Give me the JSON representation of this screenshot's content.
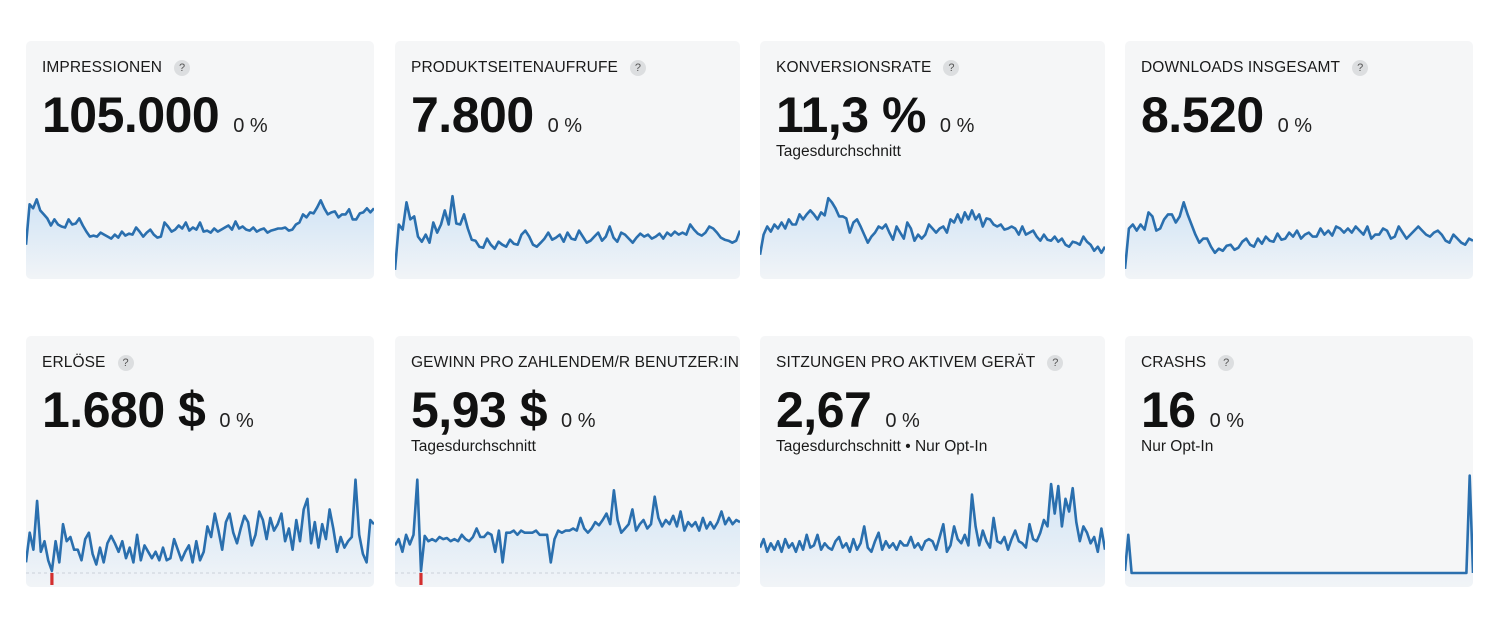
{
  "cards": [
    {
      "title": "IMPRESSIONEN",
      "value": "105.000",
      "delta": "0 %",
      "subtitle": "",
      "help": "?",
      "series": [
        0.3,
        0.7,
        0.66,
        0.75,
        0.64,
        0.6,
        0.56,
        0.49,
        0.55,
        0.5,
        0.48,
        0.47,
        0.55,
        0.5,
        0.51,
        0.56,
        0.49,
        0.43,
        0.38,
        0.39,
        0.38,
        0.42,
        0.4,
        0.38,
        0.36,
        0.4,
        0.37,
        0.43,
        0.39,
        0.41,
        0.4,
        0.47,
        0.43,
        0.38,
        0.42,
        0.45,
        0.4,
        0.37,
        0.38,
        0.52,
        0.48,
        0.43,
        0.45,
        0.49,
        0.46,
        0.52,
        0.44,
        0.47,
        0.45,
        0.52,
        0.43,
        0.44,
        0.42,
        0.46,
        0.43,
        0.45,
        0.47,
        0.49,
        0.45,
        0.53,
        0.46,
        0.48,
        0.45,
        0.44,
        0.47,
        0.43,
        0.45,
        0.46,
        0.42,
        0.44,
        0.45,
        0.46,
        0.46,
        0.47,
        0.44,
        0.45,
        0.5,
        0.52,
        0.6,
        0.57,
        0.62,
        0.61,
        0.67,
        0.74,
        0.66,
        0.6,
        0.62,
        0.63,
        0.57,
        0.6,
        0.6,
        0.65,
        0.55,
        0.55,
        0.61,
        0.62,
        0.66,
        0.62,
        0.66
      ],
      "dips": [],
      "baseline": false
    },
    {
      "title": "PRODUKTSEITENAUFRUFE",
      "value": "7.800",
      "delta": "0 %",
      "subtitle": "",
      "help": "?",
      "series": [
        0.05,
        0.5,
        0.45,
        0.72,
        0.55,
        0.58,
        0.38,
        0.33,
        0.4,
        0.32,
        0.52,
        0.42,
        0.5,
        0.64,
        0.5,
        0.78,
        0.51,
        0.5,
        0.6,
        0.46,
        0.35,
        0.34,
        0.28,
        0.27,
        0.36,
        0.3,
        0.26,
        0.33,
        0.3,
        0.28,
        0.35,
        0.31,
        0.3,
        0.4,
        0.44,
        0.38,
        0.3,
        0.28,
        0.32,
        0.36,
        0.42,
        0.35,
        0.37,
        0.4,
        0.33,
        0.42,
        0.36,
        0.35,
        0.44,
        0.38,
        0.32,
        0.34,
        0.38,
        0.42,
        0.34,
        0.38,
        0.48,
        0.37,
        0.33,
        0.42,
        0.4,
        0.36,
        0.32,
        0.37,
        0.41,
        0.38,
        0.4,
        0.36,
        0.38,
        0.41,
        0.36,
        0.42,
        0.39,
        0.43,
        0.4,
        0.42,
        0.4,
        0.5,
        0.45,
        0.41,
        0.39,
        0.42,
        0.48,
        0.46,
        0.42,
        0.37,
        0.35,
        0.34,
        0.32,
        0.34,
        0.44
      ],
      "dips": [],
      "baseline": false
    },
    {
      "title": "KONVERSIONSRATE",
      "value": "11,3 %",
      "delta": "0 %",
      "subtitle": "Tagesdurchschnitt",
      "help": "?",
      "series": [
        0.2,
        0.4,
        0.48,
        0.43,
        0.5,
        0.46,
        0.52,
        0.46,
        0.55,
        0.5,
        0.5,
        0.6,
        0.55,
        0.6,
        0.64,
        0.6,
        0.55,
        0.62,
        0.59,
        0.76,
        0.72,
        0.66,
        0.58,
        0.58,
        0.56,
        0.42,
        0.52,
        0.55,
        0.48,
        0.4,
        0.32,
        0.38,
        0.42,
        0.48,
        0.46,
        0.5,
        0.42,
        0.35,
        0.48,
        0.42,
        0.36,
        0.52,
        0.46,
        0.34,
        0.4,
        0.36,
        0.4,
        0.5,
        0.46,
        0.42,
        0.46,
        0.48,
        0.42,
        0.55,
        0.52,
        0.6,
        0.52,
        0.62,
        0.55,
        0.64,
        0.55,
        0.6,
        0.48,
        0.56,
        0.55,
        0.5,
        0.48,
        0.5,
        0.45,
        0.46,
        0.48,
        0.46,
        0.4,
        0.48,
        0.4,
        0.42,
        0.44,
        0.38,
        0.34,
        0.4,
        0.35,
        0.34,
        0.38,
        0.33,
        0.36,
        0.3,
        0.28,
        0.33,
        0.32,
        0.3,
        0.38,
        0.33,
        0.3,
        0.24,
        0.28,
        0.22,
        0.28
      ],
      "dips": [],
      "baseline": false
    },
    {
      "title": "DOWNLOADS INSGESAMT",
      "value": "8.520",
      "delta": "0 %",
      "subtitle": "",
      "help": "?",
      "series": [
        0.06,
        0.46,
        0.5,
        0.44,
        0.5,
        0.45,
        0.62,
        0.58,
        0.44,
        0.46,
        0.55,
        0.6,
        0.6,
        0.52,
        0.58,
        0.72,
        0.6,
        0.5,
        0.4,
        0.32,
        0.36,
        0.36,
        0.28,
        0.22,
        0.26,
        0.24,
        0.29,
        0.3,
        0.25,
        0.27,
        0.33,
        0.36,
        0.3,
        0.28,
        0.36,
        0.31,
        0.38,
        0.34,
        0.33,
        0.41,
        0.35,
        0.36,
        0.42,
        0.38,
        0.44,
        0.36,
        0.4,
        0.42,
        0.38,
        0.38,
        0.46,
        0.4,
        0.44,
        0.39,
        0.48,
        0.46,
        0.42,
        0.46,
        0.42,
        0.48,
        0.44,
        0.4,
        0.48,
        0.36,
        0.4,
        0.4,
        0.46,
        0.44,
        0.36,
        0.38,
        0.48,
        0.42,
        0.36,
        0.4,
        0.44,
        0.48,
        0.44,
        0.4,
        0.38,
        0.42,
        0.44,
        0.4,
        0.34,
        0.32,
        0.4,
        0.36,
        0.32,
        0.3,
        0.36,
        0.34
      ],
      "dips": [],
      "baseline": false
    },
    {
      "title": "ERLÖSE",
      "value": "1.680 $",
      "delta": "0 %",
      "subtitle": "",
      "help": "?",
      "series": [
        0.1,
        0.38,
        0.22,
        0.68,
        0.2,
        0.3,
        0.12,
        0.02,
        0.3,
        0.1,
        0.46,
        0.3,
        0.34,
        0.22,
        0.22,
        0.12,
        0.32,
        0.38,
        0.18,
        0.08,
        0.24,
        0.1,
        0.28,
        0.35,
        0.28,
        0.2,
        0.3,
        0.14,
        0.24,
        0.1,
        0.36,
        0.12,
        0.26,
        0.2,
        0.14,
        0.2,
        0.12,
        0.24,
        0.12,
        0.14,
        0.32,
        0.22,
        0.12,
        0.2,
        0.26,
        0.1,
        0.3,
        0.12,
        0.2,
        0.44,
        0.34,
        0.56,
        0.4,
        0.22,
        0.48,
        0.56,
        0.38,
        0.28,
        0.42,
        0.54,
        0.48,
        0.26,
        0.36,
        0.58,
        0.5,
        0.32,
        0.52,
        0.4,
        0.46,
        0.56,
        0.3,
        0.42,
        0.22,
        0.5,
        0.3,
        0.6,
        0.7,
        0.28,
        0.48,
        0.24,
        0.46,
        0.32,
        0.6,
        0.42,
        0.2,
        0.34,
        0.24,
        0.3,
        0.34,
        0.88,
        0.36,
        0.18,
        0.1,
        0.5,
        0.46
      ],
      "dips": [
        7
      ],
      "baseline": true
    },
    {
      "title": "GEWINN PRO ZAHLENDEM/R BENUTZER:IN",
      "value": "5,93 $",
      "delta": "0 %",
      "subtitle": "Tagesdurchschnitt",
      "help": "?",
      "series": [
        0.26,
        0.32,
        0.2,
        0.36,
        0.27,
        0.36,
        0.88,
        0.02,
        0.35,
        0.3,
        0.32,
        0.3,
        0.34,
        0.32,
        0.33,
        0.3,
        0.32,
        0.3,
        0.36,
        0.32,
        0.3,
        0.34,
        0.42,
        0.34,
        0.34,
        0.38,
        0.36,
        0.2,
        0.4,
        0.1,
        0.38,
        0.38,
        0.4,
        0.36,
        0.4,
        0.38,
        0.38,
        0.38,
        0.4,
        0.36,
        0.36,
        0.36,
        0.1,
        0.32,
        0.4,
        0.38,
        0.4,
        0.4,
        0.42,
        0.4,
        0.52,
        0.42,
        0.38,
        0.42,
        0.48,
        0.45,
        0.5,
        0.56,
        0.46,
        0.78,
        0.5,
        0.38,
        0.42,
        0.46,
        0.6,
        0.4,
        0.46,
        0.5,
        0.42,
        0.46,
        0.72,
        0.52,
        0.44,
        0.5,
        0.46,
        0.54,
        0.44,
        0.58,
        0.4,
        0.48,
        0.44,
        0.48,
        0.4,
        0.52,
        0.42,
        0.48,
        0.42,
        0.48,
        0.58,
        0.46,
        0.52,
        0.46,
        0.5,
        0.48
      ],
      "dips": [
        7
      ],
      "baseline": true
    },
    {
      "title": "SITZUNGEN PRO AKTIVEM GERÄT",
      "value": "2,67",
      "delta": "0 %",
      "subtitle": "Tagesdurchschnitt • Nur Opt-In",
      "help": "?",
      "series": [
        0.24,
        0.32,
        0.2,
        0.28,
        0.22,
        0.3,
        0.2,
        0.32,
        0.24,
        0.28,
        0.2,
        0.3,
        0.22,
        0.36,
        0.24,
        0.26,
        0.36,
        0.22,
        0.28,
        0.24,
        0.22,
        0.3,
        0.34,
        0.24,
        0.28,
        0.2,
        0.32,
        0.22,
        0.28,
        0.44,
        0.24,
        0.2,
        0.3,
        0.38,
        0.22,
        0.3,
        0.24,
        0.28,
        0.22,
        0.3,
        0.26,
        0.26,
        0.34,
        0.24,
        0.28,
        0.22,
        0.3,
        0.32,
        0.3,
        0.22,
        0.34,
        0.46,
        0.2,
        0.26,
        0.44,
        0.32,
        0.28,
        0.36,
        0.26,
        0.74,
        0.44,
        0.26,
        0.4,
        0.3,
        0.24,
        0.52,
        0.3,
        0.28,
        0.34,
        0.22,
        0.32,
        0.4,
        0.3,
        0.28,
        0.24,
        0.46,
        0.32,
        0.3,
        0.38,
        0.5,
        0.44,
        0.84,
        0.56,
        0.82,
        0.44,
        0.7,
        0.58,
        0.8,
        0.48,
        0.3,
        0.44,
        0.38,
        0.28,
        0.34,
        0.2,
        0.42,
        0.22
      ],
      "dips": [],
      "baseline": false
    },
    {
      "title": "CRASHS",
      "value": "16",
      "delta": "0 %",
      "subtitle": "Nur Opt-In",
      "help": "?",
      "series": [
        0.02,
        0.36,
        0.0,
        0.0,
        0.0,
        0.0,
        0.0,
        0.0,
        0.0,
        0.0,
        0.0,
        0.0,
        0.0,
        0.0,
        0.0,
        0.0,
        0.0,
        0.0,
        0.0,
        0.0,
        0.0,
        0.0,
        0.0,
        0.0,
        0.0,
        0.0,
        0.0,
        0.0,
        0.0,
        0.0,
        0.0,
        0.0,
        0.0,
        0.0,
        0.0,
        0.0,
        0.0,
        0.0,
        0.0,
        0.0,
        0.0,
        0.0,
        0.0,
        0.0,
        0.0,
        0.0,
        0.0,
        0.0,
        0.0,
        0.0,
        0.0,
        0.0,
        0.0,
        0.0,
        0.0,
        0.0,
        0.0,
        0.0,
        0.0,
        0.0,
        0.0,
        0.0,
        0.0,
        0.0,
        0.0,
        0.0,
        0.0,
        0.0,
        0.0,
        0.0,
        0.0,
        0.0,
        0.0,
        0.0,
        0.0,
        0.0,
        0.0,
        0.0,
        0.0,
        0.0,
        0.0,
        0.0,
        0.0,
        0.0,
        0.0,
        0.0,
        0.0,
        0.0,
        0.0,
        0.0,
        0.0,
        0.0,
        0.0,
        0.0,
        0.0,
        0.0,
        0.0,
        0.0,
        0.0,
        0.0,
        0.0,
        0.0,
        0.0,
        0.0,
        0.92,
        0.0
      ],
      "dips": [],
      "baseline": false
    }
  ],
  "colors": {
    "line": "#2a6fae",
    "fill_top": "#cfe3f6",
    "dip": "#d32f2f",
    "baseline": "#c9ccd1"
  }
}
